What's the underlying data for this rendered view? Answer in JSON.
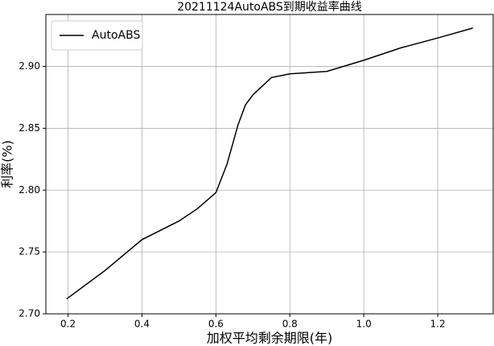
{
  "chart_data": {
    "type": "line",
    "title": "20211124AutoABS到期收益率曲线",
    "xlabel": "加权平均剩余期限(年)",
    "ylabel": "利率(%)",
    "x": [
      0.196,
      0.3,
      0.4,
      0.5,
      0.55,
      0.6,
      0.63,
      0.66,
      0.68,
      0.7,
      0.75,
      0.8,
      0.9,
      1.0,
      1.1,
      1.2,
      1.295
    ],
    "series": [
      {
        "name": "AutoABS",
        "color": "#000000",
        "values": [
          2.712,
          2.735,
          2.76,
          2.775,
          2.785,
          2.798,
          2.821,
          2.853,
          2.869,
          2.877,
          2.891,
          2.894,
          2.896,
          2.905,
          2.915,
          2.923,
          2.931
        ]
      }
    ],
    "xlim": [
      0.14,
      1.35
    ],
    "ylim": [
      2.7,
      2.942
    ],
    "xticks": [
      0.2,
      0.4,
      0.6,
      0.8,
      {
        "value": 1.0,
        "label": "1.0"
      },
      1.2
    ],
    "yticks": [
      {
        "value": 2.7,
        "label": "2.70"
      },
      2.75,
      {
        "value": 2.8,
        "label": "2.80"
      },
      2.85,
      {
        "value": 2.9,
        "label": "2.90"
      }
    ],
    "grid": true,
    "legend": "upper-left"
  }
}
